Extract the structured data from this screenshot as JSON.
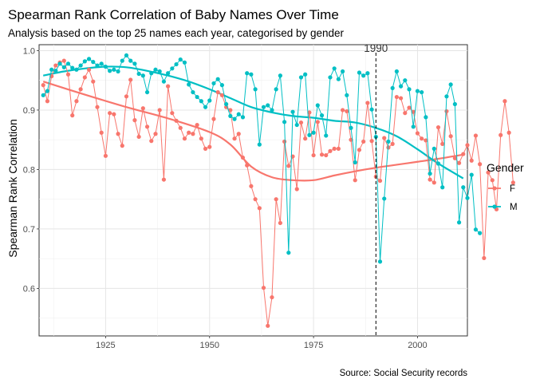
{
  "chart_data": {
    "type": "line",
    "title": "Spearman Rank Correlation of Baby Names Over Time",
    "subtitle": "Analysis based on the top 25 names each year, categorised by gender",
    "caption": "Source: Social Security records",
    "xlabel": "",
    "ylabel": "Spearman Rank Correlation",
    "xlim": [
      1909,
      2012
    ],
    "ylim": [
      0.52,
      1.01
    ],
    "x_ticks": [
      1925,
      1950,
      1975,
      2000
    ],
    "y_ticks": [
      0.6,
      0.7,
      0.8,
      0.9,
      1.0
    ],
    "y_tick_labels": [
      "0.6",
      "0.7",
      "0.8",
      "0.9",
      "1.0"
    ],
    "grid": true,
    "legend": {
      "title": "Gender",
      "position": "right"
    },
    "annotations": [
      {
        "label": "1990",
        "x": 1990,
        "style": "dashed vertical line"
      }
    ],
    "series": [
      {
        "name": "F",
        "color": "#F8766D",
        "x_start": 1910,
        "values": [
          0.942,
          0.915,
          0.957,
          0.975,
          0.98,
          0.983,
          0.96,
          0.891,
          0.915,
          0.935,
          0.955,
          0.968,
          0.948,
          0.905,
          0.862,
          0.823,
          0.895,
          0.893,
          0.86,
          0.84,
          0.923,
          0.951,
          0.883,
          0.855,
          0.903,
          0.872,
          0.848,
          0.86,
          0.9,
          0.783,
          0.94,
          0.895,
          0.882,
          0.87,
          0.852,
          0.862,
          0.86,
          0.875,
          0.852,
          0.835,
          0.838,
          0.885,
          0.93,
          0.925,
          0.905,
          0.9,
          0.852,
          0.86,
          0.82,
          0.807,
          0.772,
          0.75,
          0.735,
          0.601,
          0.537,
          0.585,
          0.75,
          0.71,
          0.847,
          0.806,
          0.822,
          0.767,
          0.879,
          0.852,
          0.896,
          0.824,
          0.88,
          0.825,
          0.824,
          0.831,
          0.835,
          0.835,
          0.9,
          0.898,
          0.85,
          0.782,
          0.833,
          0.847,
          0.912,
          0.848,
          0.788,
          0.781,
          0.853,
          0.837,
          0.843,
          0.922,
          0.92,
          0.895,
          0.904,
          0.897,
          0.861,
          0.852,
          0.849,
          0.783,
          0.778,
          0.871,
          0.843,
          0.898,
          0.856,
          0.819,
          0.811,
          0.826,
          0.841,
          0.815,
          0.857,
          0.809,
          0.651,
          0.795,
          0.782,
          0.733,
          0.858,
          0.915,
          0.862,
          0.778
        ]
      },
      {
        "name": "M",
        "color": "#00BFC4",
        "x_start": 1910,
        "values": [
          0.925,
          0.932,
          0.968,
          0.966,
          0.978,
          0.972,
          0.978,
          0.971,
          0.968,
          0.975,
          0.982,
          0.986,
          0.981,
          0.975,
          0.978,
          0.973,
          0.966,
          0.968,
          0.965,
          0.983,
          0.992,
          0.983,
          0.978,
          0.961,
          0.958,
          0.93,
          0.962,
          0.968,
          0.965,
          0.948,
          0.962,
          0.97,
          0.977,
          0.985,
          0.98,
          0.943,
          0.93,
          0.922,
          0.915,
          0.905,
          0.916,
          0.945,
          0.952,
          0.942,
          0.91,
          0.89,
          0.885,
          0.893,
          0.888,
          0.962,
          0.96,
          0.935,
          0.842,
          0.905,
          0.908,
          0.9,
          0.935,
          0.958,
          0.88,
          0.66,
          0.897,
          0.875,
          0.955,
          0.96,
          0.858,
          0.862,
          0.908,
          0.891,
          0.857,
          0.955,
          0.97,
          0.952,
          0.965,
          0.925,
          0.87,
          0.812,
          0.963,
          0.958,
          0.962,
          0.901,
          0.855,
          0.645,
          0.751,
          0.847,
          0.937,
          0.965,
          0.94,
          0.95,
          0.935,
          0.872,
          0.932,
          0.93,
          0.888,
          0.793,
          0.835,
          0.81,
          0.77,
          0.923,
          0.943,
          0.91,
          0.711,
          0.77,
          0.752,
          0.791,
          0.699,
          0.693
        ]
      }
    ],
    "trends": [
      {
        "name": "F",
        "x": [
          1910,
          1920,
          1930,
          1940,
          1950,
          1955,
          1960,
          1965,
          1970,
          1975,
          1980,
          1985,
          1990,
          1995,
          2000,
          2005,
          2011
        ],
        "values": [
          0.948,
          0.926,
          0.905,
          0.886,
          0.863,
          0.842,
          0.805,
          0.787,
          0.782,
          0.782,
          0.79,
          0.797,
          0.803,
          0.808,
          0.813,
          0.818,
          0.825
        ]
      },
      {
        "name": "M",
        "x": [
          1910,
          1915,
          1920,
          1925,
          1930,
          1935,
          1940,
          1945,
          1950,
          1955,
          1960,
          1965,
          1970,
          1975,
          1980,
          1985,
          1990,
          1995,
          2000,
          2005,
          2011
        ],
        "values": [
          0.958,
          0.965,
          0.97,
          0.973,
          0.972,
          0.966,
          0.958,
          0.948,
          0.935,
          0.92,
          0.905,
          0.896,
          0.89,
          0.887,
          0.882,
          0.879,
          0.87,
          0.856,
          0.834,
          0.81,
          0.785
        ]
      }
    ]
  }
}
